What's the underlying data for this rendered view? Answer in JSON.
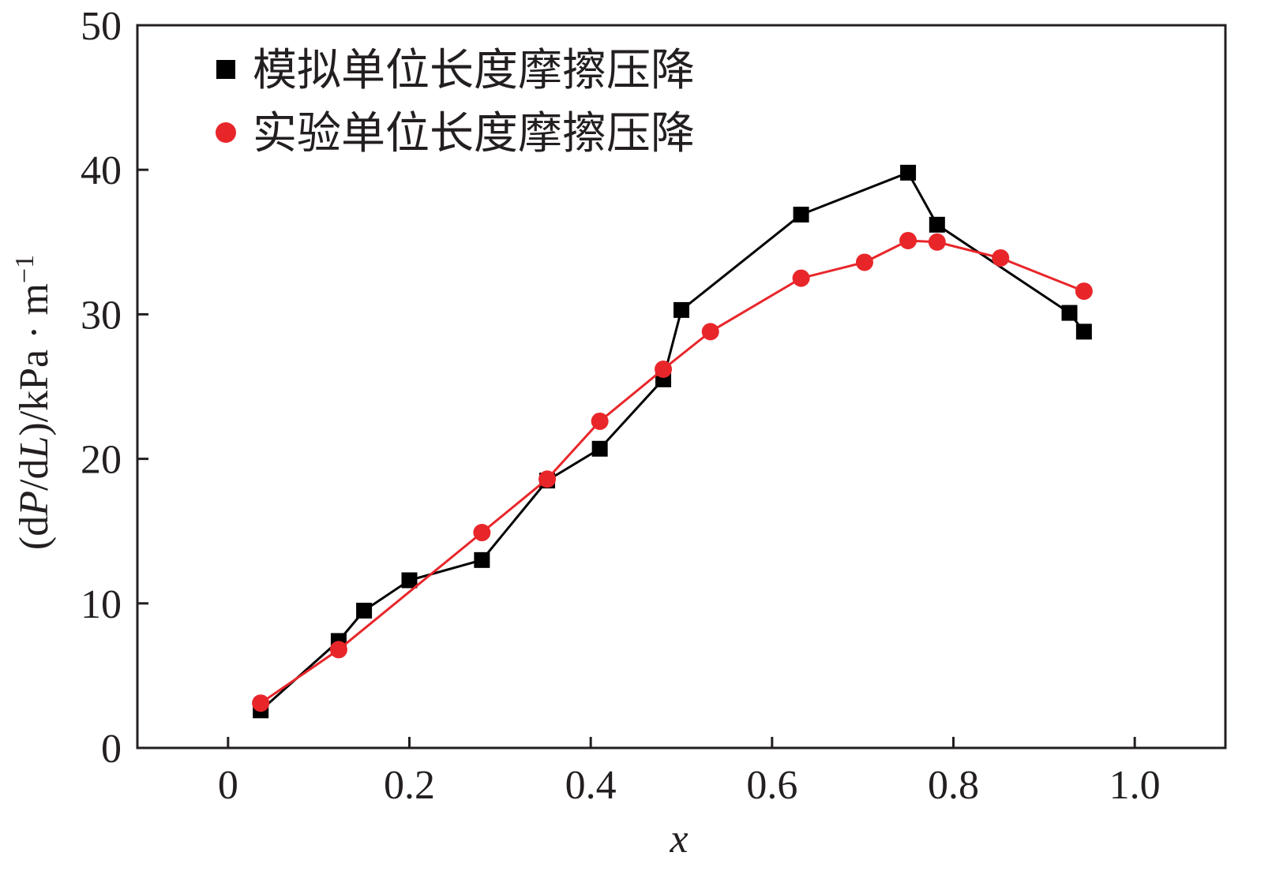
{
  "chart_data": {
    "type": "line",
    "xlabel": "x",
    "ylabel_parts": [
      "(d",
      "P",
      "/d",
      "L",
      ")/kPa · m",
      "−1"
    ],
    "xlim": [
      -0.1,
      1.1
    ],
    "ylim": [
      0,
      50
    ],
    "xticks": [
      0,
      0.2,
      0.4,
      0.6,
      0.8,
      1.0
    ],
    "xtick_labels": [
      "0",
      "0.2",
      "0.4",
      "0.6",
      "0.8",
      "1.0"
    ],
    "yticks": [
      0,
      10,
      20,
      30,
      40,
      50
    ],
    "ytick_labels": [
      "0",
      "10",
      "20",
      "30",
      "40",
      "50"
    ],
    "grid": false,
    "legend_position": "top-left",
    "series": [
      {
        "name": "模拟单位长度摩擦压降",
        "color": "#000000",
        "marker": "square",
        "x": [
          0.036,
          0.122,
          0.15,
          0.2,
          0.28,
          0.352,
          0.41,
          0.48,
          0.5,
          0.632,
          0.75,
          0.782,
          0.928,
          0.944
        ],
        "y": [
          2.6,
          7.4,
          9.5,
          11.6,
          13.0,
          18.5,
          20.7,
          25.5,
          30.3,
          36.9,
          39.8,
          36.2,
          30.1,
          28.8
        ]
      },
      {
        "name": "实验单位长度摩擦压降",
        "color": "#e8262a",
        "marker": "circle",
        "x": [
          0.036,
          0.122,
          0.28,
          0.352,
          0.41,
          0.48,
          0.532,
          0.632,
          0.702,
          0.75,
          0.782,
          0.852,
          0.944
        ],
        "y": [
          3.1,
          6.8,
          14.9,
          18.6,
          22.6,
          26.2,
          28.8,
          32.5,
          33.6,
          35.1,
          35.0,
          33.9,
          31.6
        ]
      }
    ]
  }
}
